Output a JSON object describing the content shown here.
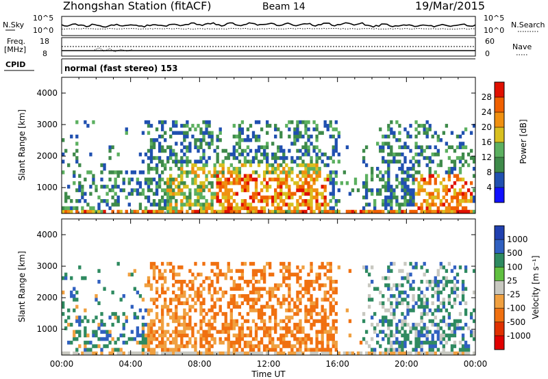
{
  "header": {
    "title": "Zhongshan Station (fitACF)",
    "beam": "Beam 14",
    "date": "19/Mar/2015"
  },
  "panels": {
    "nsky": {
      "label": "N.Sky",
      "tick_top": "10^5",
      "tick_bottom": "10^0",
      "right_label": "N.Search",
      "right_top": "10^5",
      "right_bottom": "10^0"
    },
    "freq": {
      "label_top": "Freq.",
      "label_unit": "[MHz]",
      "tick_top": "18",
      "tick_bottom": "8",
      "right_label": "Nave",
      "right_top": "60",
      "right_bottom": "0"
    },
    "cpid": {
      "label": "CPID",
      "mode": "normal (fast stereo) 153"
    }
  },
  "chart_data": [
    {
      "type": "heatmap",
      "name": "power",
      "ylabel": "Slant Range [km]",
      "ylim": [
        180,
        4500
      ],
      "yticks": [
        1000,
        2000,
        3000,
        4000
      ],
      "xlim": [
        0,
        24
      ],
      "colorbar": {
        "label": "Power [dB]",
        "range": [
          0,
          32
        ],
        "ticks": [
          "4",
          "8",
          "12",
          "16",
          "20",
          "24",
          "28"
        ],
        "colors": [
          "#1010ff",
          "#2050b0",
          "#3e8a4a",
          "#5cb060",
          "#d8c020",
          "#f09010",
          "#f06000",
          "#e01000"
        ]
      }
    },
    {
      "type": "heatmap",
      "name": "velocity",
      "ylabel": "Slant Range [km]",
      "ylim": [
        180,
        4500
      ],
      "yticks": [
        1000,
        2000,
        3000,
        4000
      ],
      "xlim": [
        0,
        24
      ],
      "colorbar": {
        "label": "Velocity [m s⁻¹]",
        "ticks": [
          "1000",
          "500",
          "100",
          "25",
          "-25",
          "-100",
          "-500",
          "-1000"
        ],
        "colors": [
          "#2040b0",
          "#3060c0",
          "#2e8a60",
          "#60c040",
          "#c8c8c0",
          "#f0a040",
          "#f07010",
          "#e03000",
          "#e00000"
        ]
      }
    }
  ],
  "xaxis": {
    "label": "Time UT",
    "ticks": [
      "00:00",
      "04:00",
      "08:00",
      "12:00",
      "16:00",
      "20:00",
      "00:00"
    ]
  }
}
